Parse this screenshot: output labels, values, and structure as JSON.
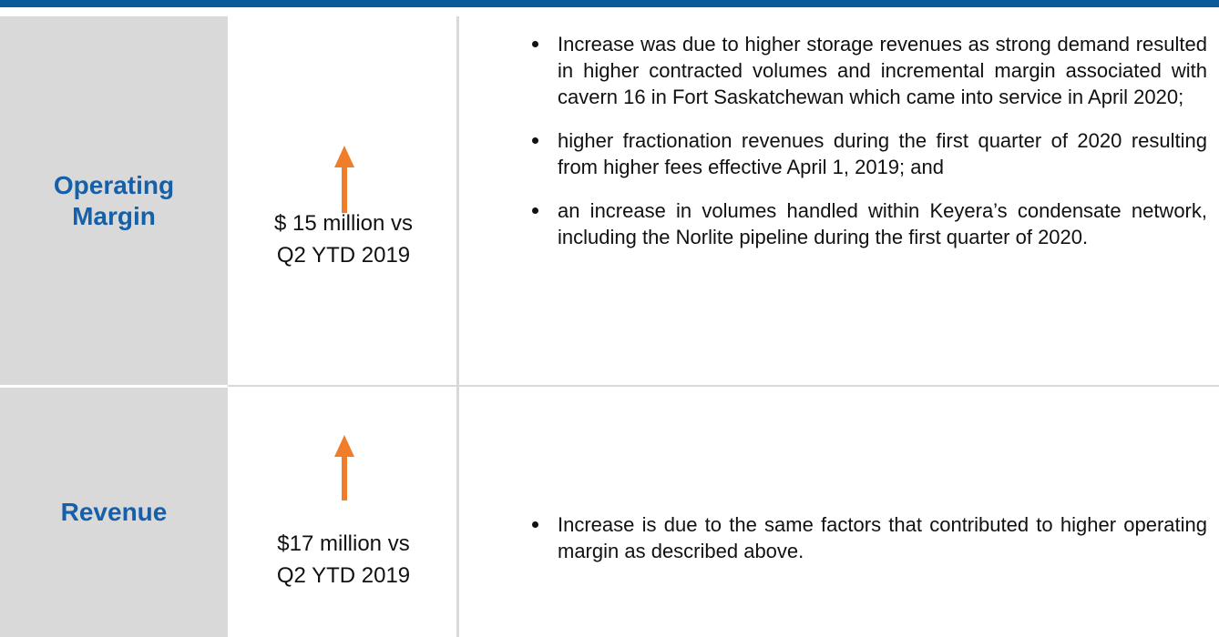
{
  "rows": [
    {
      "label": "Operating Margin",
      "change": [
        "$ 15 million vs",
        "Q2 YTD 2019"
      ],
      "bullets": [
        "Increase was due to higher storage revenues as strong demand resulted in higher contracted volumes and incremental margin associated with cavern 16 in Fort Saskatchewan which came into service in April 2020;",
        "higher fractionation revenues during the first quarter of 2020 resulting from higher fees effective April 1, 2019; and",
        "an increase in volumes handled within Keyera’s condensate network, including the Norlite pipeline during the first quarter of 2020."
      ]
    },
    {
      "label": "Revenue",
      "change": [
        "$17 million vs",
        "Q2 YTD 2019"
      ],
      "bullets": [
        "Increase is due to the same factors that contributed to higher operating margin as described above."
      ]
    }
  ]
}
